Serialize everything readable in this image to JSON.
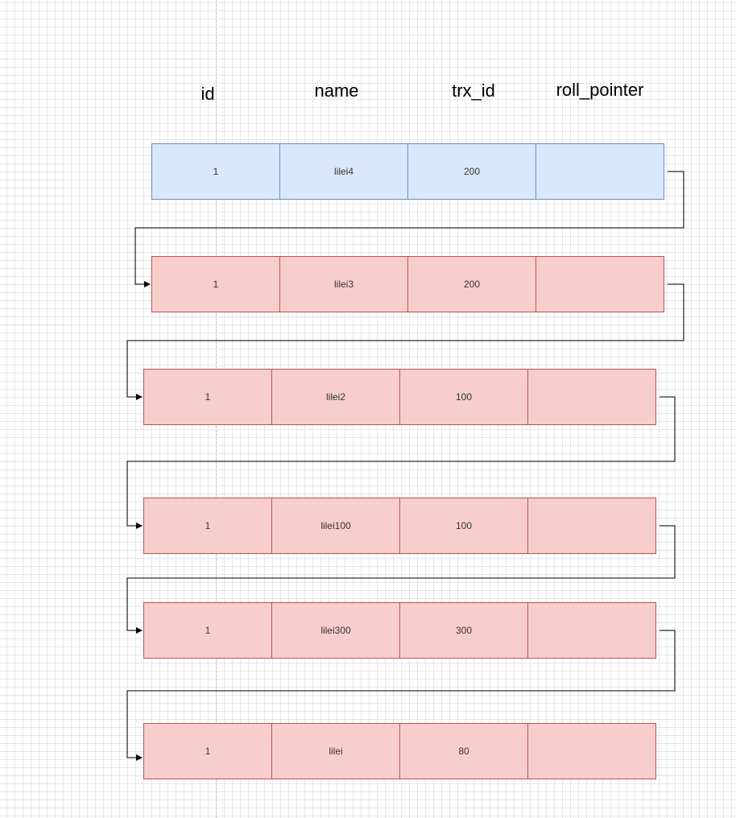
{
  "headers": {
    "id": "id",
    "name": "name",
    "trx_id": "trx_id",
    "roll_pointer": "roll_pointer"
  },
  "records": [
    {
      "id": "1",
      "name": "lilei4",
      "trx_id": "200",
      "roll_pointer": "",
      "style": "blue"
    },
    {
      "id": "1",
      "name": "lilei3",
      "trx_id": "200",
      "roll_pointer": "",
      "style": "red"
    },
    {
      "id": "1",
      "name": "lilei2",
      "trx_id": "100",
      "roll_pointer": "",
      "style": "red"
    },
    {
      "id": "1",
      "name": "lilei100",
      "trx_id": "100",
      "roll_pointer": "",
      "style": "red"
    },
    {
      "id": "1",
      "name": "lilei300",
      "trx_id": "300",
      "roll_pointer": "",
      "style": "red"
    },
    {
      "id": "1",
      "name": "lilei",
      "trx_id": "80",
      "roll_pointer": "",
      "style": "red"
    }
  ],
  "colors": {
    "current_fill": "#dae8fc",
    "current_stroke": "#6c8ebf",
    "history_fill": "#f8cecc",
    "history_stroke": "#b85450",
    "connector": "#000000"
  }
}
